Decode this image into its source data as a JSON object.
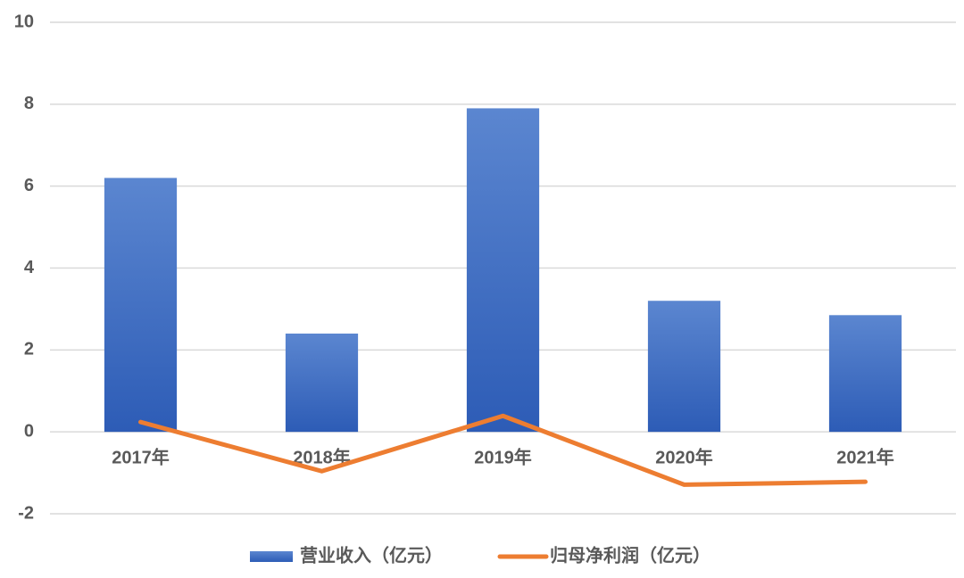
{
  "chart_data": {
    "type": "bar",
    "categories": [
      "2017年",
      "2018年",
      "2019年",
      "2020年",
      "2021年"
    ],
    "series": [
      {
        "name": "营业收入（亿元）",
        "type": "bar",
        "color": "#4472c4",
        "values": [
          6.2,
          2.4,
          7.9,
          3.2,
          2.85
        ]
      },
      {
        "name": "归母净利润（亿元）",
        "type": "line",
        "color": "#ed7d31",
        "values": [
          0.24,
          -0.96,
          0.39,
          -1.29,
          -1.22
        ]
      }
    ],
    "ylim": [
      -2,
      10
    ],
    "yticks": [
      -2,
      0,
      2,
      4,
      6,
      8,
      10
    ],
    "grid": true
  }
}
